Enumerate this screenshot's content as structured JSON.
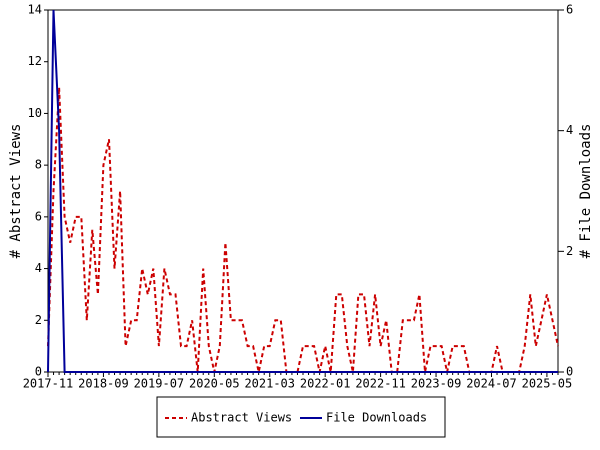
{
  "chart_data": {
    "type": "line",
    "categories": [
      "2017-11",
      null,
      null,
      null,
      null,
      null,
      null,
      null,
      null,
      null,
      "2018-09",
      null,
      null,
      null,
      null,
      null,
      null,
      null,
      null,
      null,
      "2019-07",
      null,
      null,
      null,
      null,
      null,
      null,
      null,
      null,
      null,
      "2020-05",
      null,
      null,
      null,
      null,
      null,
      null,
      null,
      null,
      null,
      "2021-03",
      null,
      null,
      null,
      null,
      null,
      null,
      null,
      null,
      null,
      "2022-01",
      null,
      null,
      null,
      null,
      null,
      null,
      null,
      null,
      null,
      "2022-11",
      null,
      null,
      null,
      null,
      null,
      null,
      null,
      null,
      null,
      "2023-09",
      null,
      null,
      null,
      null,
      null,
      null,
      null,
      null,
      null,
      "2024-07",
      null,
      null,
      null,
      null,
      null,
      null,
      null,
      null,
      null,
      "2025-05",
      null,
      null
    ],
    "series": [
      {
        "name": "Abstract Views",
        "color": "#cc0000",
        "dashed": true,
        "axis": "y",
        "values": [
          1,
          7,
          11,
          6,
          5,
          6,
          6,
          2,
          5.5,
          3,
          8,
          9,
          4,
          7,
          1,
          2,
          2,
          4,
          3,
          4,
          1,
          4,
          3,
          3,
          1,
          1,
          2,
          0,
          4,
          1,
          0,
          1,
          5,
          2,
          2,
          2,
          1,
          1,
          0,
          1,
          1,
          2,
          2,
          0,
          0,
          0,
          1,
          1,
          1,
          0,
          1,
          0,
          3,
          3,
          1,
          0,
          3,
          3,
          1,
          3,
          1,
          2,
          0,
          0,
          2,
          2,
          2,
          3,
          0,
          1,
          1,
          1,
          0,
          1,
          1,
          1,
          0,
          0,
          0,
          0,
          0,
          1,
          0,
          0,
          0,
          0,
          1,
          3,
          1,
          2,
          3,
          2,
          1
        ]
      },
      {
        "name": "File Downloads",
        "color": "#000099",
        "dashed": false,
        "axis": "y2",
        "values": [
          0,
          6,
          4,
          0,
          0,
          0,
          0,
          0,
          0,
          0,
          0,
          0,
          0,
          0,
          0,
          0,
          0,
          0,
          0,
          0,
          0,
          0,
          0,
          0,
          0,
          0,
          0,
          0,
          0,
          0,
          0,
          0,
          0,
          0,
          0,
          0,
          0,
          0,
          0,
          0,
          0,
          0,
          0,
          0,
          0,
          0,
          0,
          0,
          0,
          0,
          0,
          0,
          0,
          0,
          0,
          0,
          0,
          0,
          0,
          0,
          0,
          0,
          0,
          0,
          0,
          0,
          0,
          0,
          0,
          0,
          0,
          0,
          0,
          0,
          0,
          0,
          0,
          0,
          0,
          0,
          0,
          0,
          0,
          0,
          0,
          0,
          0,
          0,
          0,
          0,
          0,
          0,
          0
        ]
      }
    ],
    "ylabel": "# Abstract Views",
    "y2label": "# File Downloads",
    "ylim": [
      0,
      14
    ],
    "yticks": [
      0,
      2,
      4,
      6,
      8,
      10,
      12,
      14
    ],
    "y2lim": [
      0,
      6
    ],
    "y2ticks": [
      0,
      2,
      4,
      6
    ]
  }
}
